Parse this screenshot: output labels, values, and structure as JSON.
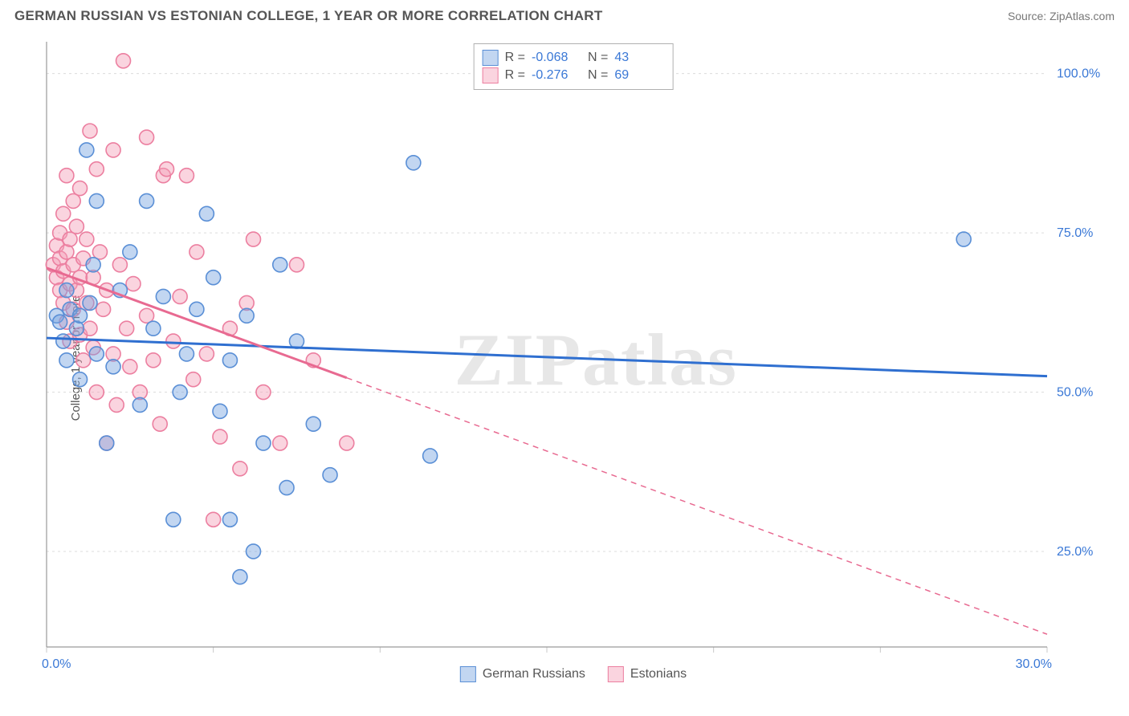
{
  "header": {
    "title": "GERMAN RUSSIAN VS ESTONIAN COLLEGE, 1 YEAR OR MORE CORRELATION CHART",
    "source_prefix": "Source: ",
    "source_name": "ZipAtlas.com"
  },
  "watermark": "ZIPatlas",
  "chart": {
    "type": "scatter",
    "ylabel": "College, 1 year or more",
    "xlim": [
      0,
      30
    ],
    "ylim": [
      10,
      105
    ],
    "xticks": [
      0,
      5,
      10,
      15,
      20,
      25,
      30
    ],
    "xtick_labels_shown": {
      "0": "0.0%",
      "30": "30.0%"
    },
    "yticks": [
      25,
      50,
      75,
      100
    ],
    "ytick_labels": [
      "25.0%",
      "50.0%",
      "75.0%",
      "100.0%"
    ],
    "background_color": "#ffffff",
    "grid_color_major": "#dcdcdc",
    "axis_color": "#9a9a9a",
    "tick_color": "#c8c8c8",
    "marker_radius": 9,
    "marker_stroke_width": 1.6,
    "trend_line_width": 3,
    "axis_label_color": "#3a78d6",
    "series": [
      {
        "name": "German Russians",
        "fill": "rgba(120,165,225,0.45)",
        "stroke": "#5a8fd6",
        "R": "-0.068",
        "N": "43",
        "trend": {
          "x1": 0,
          "y1": 58.5,
          "x2": 30,
          "y2": 52.5,
          "color": "#2f6fd0",
          "dash_after_x": null
        },
        "points": [
          [
            0.3,
            62
          ],
          [
            0.4,
            61
          ],
          [
            0.5,
            58
          ],
          [
            0.6,
            66
          ],
          [
            0.6,
            55
          ],
          [
            0.7,
            63
          ],
          [
            0.9,
            60
          ],
          [
            1.0,
            62
          ],
          [
            1.0,
            52
          ],
          [
            1.2,
            88
          ],
          [
            1.3,
            64
          ],
          [
            1.4,
            70
          ],
          [
            1.5,
            56
          ],
          [
            1.5,
            80
          ],
          [
            1.8,
            42
          ],
          [
            2.0,
            54
          ],
          [
            2.2,
            66
          ],
          [
            2.5,
            72
          ],
          [
            2.8,
            48
          ],
          [
            3.0,
            80
          ],
          [
            3.2,
            60
          ],
          [
            3.5,
            65
          ],
          [
            3.8,
            30
          ],
          [
            4.0,
            50
          ],
          [
            4.2,
            56
          ],
          [
            4.5,
            63
          ],
          [
            4.8,
            78
          ],
          [
            5.0,
            68
          ],
          [
            5.2,
            47
          ],
          [
            5.5,
            55
          ],
          [
            5.5,
            30
          ],
          [
            5.8,
            21
          ],
          [
            6.0,
            62
          ],
          [
            6.2,
            25
          ],
          [
            6.5,
            42
          ],
          [
            7.0,
            70
          ],
          [
            7.2,
            35
          ],
          [
            7.5,
            58
          ],
          [
            8.0,
            45
          ],
          [
            8.5,
            37
          ],
          [
            11.0,
            86
          ],
          [
            11.5,
            40
          ],
          [
            27.5,
            74
          ]
        ]
      },
      {
        "name": "Estonians",
        "fill": "rgba(245,160,185,0.45)",
        "stroke": "#ec7fa0",
        "R": "-0.276",
        "N": "69",
        "trend": {
          "x1": 0,
          "y1": 69.5,
          "x2": 30,
          "y2": 12.0,
          "color": "#e86a91",
          "dash_after_x": 9.0
        },
        "points": [
          [
            0.2,
            70
          ],
          [
            0.3,
            68
          ],
          [
            0.3,
            73
          ],
          [
            0.4,
            66
          ],
          [
            0.4,
            71
          ],
          [
            0.4,
            75
          ],
          [
            0.5,
            64
          ],
          [
            0.5,
            69
          ],
          [
            0.5,
            78
          ],
          [
            0.6,
            61
          ],
          [
            0.6,
            84
          ],
          [
            0.6,
            72
          ],
          [
            0.7,
            67
          ],
          [
            0.7,
            74
          ],
          [
            0.7,
            58
          ],
          [
            0.8,
            63
          ],
          [
            0.8,
            70
          ],
          [
            0.8,
            80
          ],
          [
            0.9,
            66
          ],
          [
            0.9,
            76
          ],
          [
            1.0,
            59
          ],
          [
            1.0,
            82
          ],
          [
            1.0,
            68
          ],
          [
            1.1,
            71
          ],
          [
            1.1,
            55
          ],
          [
            1.2,
            64
          ],
          [
            1.2,
            74
          ],
          [
            1.3,
            91
          ],
          [
            1.3,
            60
          ],
          [
            1.4,
            57
          ],
          [
            1.4,
            68
          ],
          [
            1.5,
            85
          ],
          [
            1.5,
            50
          ],
          [
            1.6,
            72
          ],
          [
            1.7,
            63
          ],
          [
            1.8,
            66
          ],
          [
            1.8,
            42
          ],
          [
            2.0,
            88
          ],
          [
            2.0,
            56
          ],
          [
            2.1,
            48
          ],
          [
            2.2,
            70
          ],
          [
            2.3,
            102
          ],
          [
            2.4,
            60
          ],
          [
            2.5,
            54
          ],
          [
            2.6,
            67
          ],
          [
            2.8,
            50
          ],
          [
            3.0,
            90
          ],
          [
            3.0,
            62
          ],
          [
            3.2,
            55
          ],
          [
            3.4,
            45
          ],
          [
            3.5,
            84
          ],
          [
            3.6,
            85
          ],
          [
            3.8,
            58
          ],
          [
            4.0,
            65
          ],
          [
            4.2,
            84
          ],
          [
            4.4,
            52
          ],
          [
            4.5,
            72
          ],
          [
            4.8,
            56
          ],
          [
            5.0,
            30
          ],
          [
            5.2,
            43
          ],
          [
            5.5,
            60
          ],
          [
            5.8,
            38
          ],
          [
            6.0,
            64
          ],
          [
            6.2,
            74
          ],
          [
            6.5,
            50
          ],
          [
            7.0,
            42
          ],
          [
            7.5,
            70
          ],
          [
            8.0,
            55
          ],
          [
            9.0,
            42
          ]
        ]
      }
    ],
    "stats_legend_labels": {
      "R": "R =",
      "N": "N ="
    },
    "bottom_legend": [
      "German Russians",
      "Estonians"
    ]
  }
}
